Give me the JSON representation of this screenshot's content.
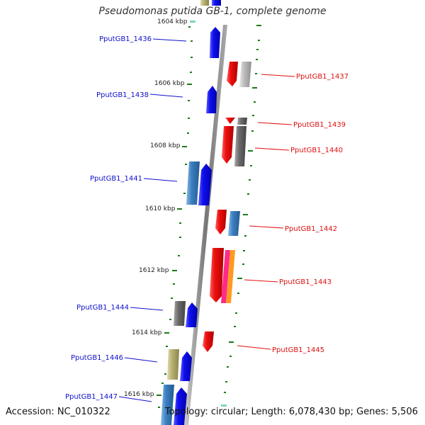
{
  "title": "Pseudomonas putida GB-1, complete genome",
  "footer": {
    "accession": "Accession: NC_010322",
    "topology": "Topology: circular; Length: 6,078,430 bp; Genes: 5,506"
  },
  "colors": {
    "blue_gene": "#1010ee",
    "red_gene": "#ee1010",
    "steel_gene": "#3a7fc0",
    "gray_gene": "#6a6a6a",
    "lightgray_gene": "#bbbbbb",
    "olive_gene": "#b8b070",
    "tick_green": "#1b7a1b",
    "backbone": "#888888"
  },
  "kbp_marks": [
    "1604 kbp",
    "1606 kbp",
    "1608 kbp",
    "1610 kbp",
    "1612 kbp",
    "1614 kbp",
    "1616 kbp"
  ],
  "left_labels": [
    "PputGB1_1436",
    "PputGB1_1438",
    "PputGB1_1441",
    "PputGB1_1444",
    "PputGB1_1446",
    "PputGB1_1447"
  ],
  "right_labels": [
    "PputGB1_1437",
    "PputGB1_1439",
    "PputGB1_1440",
    "PputGB1_1442",
    "PputGB1_1443",
    "PputGB1_1445"
  ]
}
